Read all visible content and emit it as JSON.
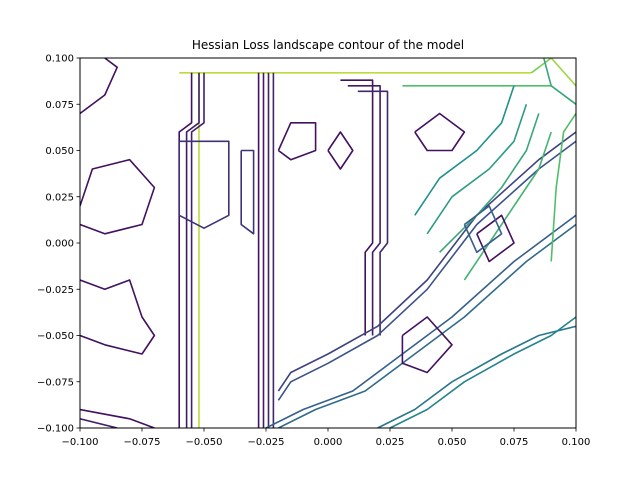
{
  "chart_data": {
    "type": "contour",
    "title": "Hessian Loss landscape contour of the model",
    "xlabel": "",
    "ylabel": "",
    "xlim": [
      -0.1,
      0.1
    ],
    "ylim": [
      -0.1,
      0.1
    ],
    "x_ticks": [
      -0.1,
      -0.075,
      -0.05,
      -0.025,
      0.0,
      0.025,
      0.05,
      0.075,
      0.1
    ],
    "x_tick_labels": [
      "−0.100",
      "−0.075",
      "−0.050",
      "−0.025",
      "0.000",
      "0.025",
      "0.050",
      "0.075",
      "0.100"
    ],
    "y_ticks": [
      -0.1,
      -0.075,
      -0.05,
      -0.025,
      0.0,
      0.025,
      0.05,
      0.075,
      0.1
    ],
    "y_tick_labels": [
      "−0.100",
      "−0.075",
      "−0.050",
      "−0.025",
      "0.000",
      "0.025",
      "0.050",
      "0.075",
      "0.100"
    ],
    "grid": false,
    "colormap": "viridis",
    "colors": {
      "low": "#440154",
      "mid_low": "#3b528b",
      "mid": "#21918c",
      "mid_high": "#5ec962",
      "high": "#fde725"
    },
    "paths": [
      {
        "level": 0.9,
        "points": [
          [
            -0.06,
            0.092
          ],
          [
            0.082,
            0.092
          ]
        ]
      },
      {
        "level": 0.9,
        "points": [
          [
            -0.052,
            0.092
          ],
          [
            -0.052,
            -0.1
          ]
        ]
      },
      {
        "level": 0.8,
        "points": [
          [
            0.082,
            0.092
          ],
          [
            0.09,
            0.1
          ]
        ]
      },
      {
        "level": 0.7,
        "points": [
          [
            0.03,
            0.085
          ],
          [
            0.09,
            0.085
          ]
        ]
      },
      {
        "level": 0.6,
        "points": [
          [
            0.087,
            0.1
          ],
          [
            0.09,
            0.085
          ],
          [
            0.1,
            0.075
          ]
        ]
      },
      {
        "level": 0.85,
        "points": [
          [
            0.09,
            0.1
          ],
          [
            0.1,
            0.085
          ]
        ]
      },
      {
        "level": 0.05,
        "points": [
          [
            -0.055,
            0.092
          ],
          [
            -0.055,
            0.065
          ],
          [
            -0.06,
            0.06
          ],
          [
            -0.06,
            -0.1
          ]
        ]
      },
      {
        "level": 0.08,
        "points": [
          [
            -0.052,
            0.092
          ],
          [
            -0.052,
            0.065
          ],
          [
            -0.057,
            0.06
          ],
          [
            -0.057,
            -0.1
          ]
        ]
      },
      {
        "level": 0.1,
        "points": [
          [
            -0.05,
            0.092
          ],
          [
            -0.05,
            0.065
          ],
          [
            -0.055,
            0.06
          ],
          [
            -0.055,
            -0.1
          ]
        ]
      },
      {
        "level": 0.05,
        "points": [
          [
            -0.028,
            0.092
          ],
          [
            -0.028,
            -0.1
          ]
        ]
      },
      {
        "level": 0.08,
        "points": [
          [
            -0.026,
            0.092
          ],
          [
            -0.026,
            -0.1
          ]
        ]
      },
      {
        "level": 0.1,
        "points": [
          [
            -0.024,
            0.092
          ],
          [
            -0.024,
            -0.1
          ]
        ]
      },
      {
        "level": 0.12,
        "points": [
          [
            -0.022,
            0.092
          ],
          [
            -0.022,
            -0.1
          ]
        ]
      },
      {
        "level": 0.05,
        "points": [
          [
            0.005,
            0.088
          ],
          [
            0.018,
            0.088
          ],
          [
            0.018,
            0.0
          ],
          [
            0.015,
            -0.005
          ],
          [
            0.015,
            -0.05
          ]
        ]
      },
      {
        "level": 0.08,
        "points": [
          [
            0.008,
            0.085
          ],
          [
            0.021,
            0.085
          ],
          [
            0.021,
            0.0
          ],
          [
            0.018,
            -0.005
          ],
          [
            0.018,
            -0.05
          ]
        ]
      },
      {
        "level": 0.12,
        "points": [
          [
            0.012,
            0.082
          ],
          [
            0.024,
            0.082
          ],
          [
            0.024,
            0.0
          ],
          [
            0.021,
            -0.005
          ],
          [
            0.021,
            -0.05
          ]
        ]
      },
      {
        "level": 0.15,
        "points": [
          [
            -0.06,
            0.055
          ],
          [
            -0.06,
            0.015
          ],
          [
            -0.05,
            0.008
          ],
          [
            -0.04,
            0.015
          ],
          [
            -0.04,
            0.055
          ],
          [
            -0.06,
            0.055
          ]
        ]
      },
      {
        "level": 0.15,
        "points": [
          [
            -0.035,
            0.05
          ],
          [
            -0.035,
            0.01
          ],
          [
            -0.03,
            0.005
          ],
          [
            -0.03,
            0.05
          ],
          [
            -0.035,
            0.05
          ]
        ]
      },
      {
        "level": 0.2,
        "points": [
          [
            -0.02,
            -0.08
          ],
          [
            -0.015,
            -0.07
          ],
          [
            0.0,
            -0.06
          ],
          [
            0.02,
            -0.045
          ],
          [
            0.04,
            -0.02
          ],
          [
            0.06,
            0.015
          ],
          [
            0.085,
            0.045
          ],
          [
            0.1,
            0.06
          ]
        ]
      },
      {
        "level": 0.25,
        "points": [
          [
            -0.02,
            -0.085
          ],
          [
            -0.015,
            -0.075
          ],
          [
            0.0,
            -0.065
          ],
          [
            0.02,
            -0.05
          ],
          [
            0.04,
            -0.025
          ],
          [
            0.06,
            0.01
          ],
          [
            0.085,
            0.04
          ],
          [
            0.1,
            0.055
          ]
        ]
      },
      {
        "level": 0.3,
        "points": [
          [
            -0.025,
            -0.1
          ],
          [
            -0.01,
            -0.09
          ],
          [
            0.01,
            -0.08
          ],
          [
            0.03,
            -0.06
          ],
          [
            0.05,
            -0.04
          ],
          [
            0.075,
            -0.01
          ],
          [
            0.1,
            0.015
          ]
        ]
      },
      {
        "level": 0.35,
        "points": [
          [
            -0.02,
            -0.1
          ],
          [
            -0.005,
            -0.09
          ],
          [
            0.015,
            -0.08
          ],
          [
            0.035,
            -0.06
          ],
          [
            0.055,
            -0.04
          ],
          [
            0.08,
            -0.01
          ],
          [
            0.1,
            0.01
          ]
        ]
      },
      {
        "level": 0.4,
        "points": [
          [
            0.02,
            -0.1
          ],
          [
            0.035,
            -0.09
          ],
          [
            0.05,
            -0.075
          ],
          [
            0.07,
            -0.06
          ],
          [
            0.085,
            -0.05
          ],
          [
            0.1,
            -0.045
          ]
        ]
      },
      {
        "level": 0.45,
        "points": [
          [
            0.025,
            -0.1
          ],
          [
            0.04,
            -0.09
          ],
          [
            0.055,
            -0.075
          ],
          [
            0.075,
            -0.06
          ],
          [
            0.09,
            -0.05
          ],
          [
            0.1,
            -0.04
          ]
        ]
      },
      {
        "level": 0.5,
        "points": [
          [
            0.035,
            0.015
          ],
          [
            0.045,
            0.035
          ],
          [
            0.06,
            0.05
          ],
          [
            0.07,
            0.065
          ],
          [
            0.075,
            0.085
          ]
        ]
      },
      {
        "level": 0.55,
        "points": [
          [
            0.04,
            0.005
          ],
          [
            0.05,
            0.025
          ],
          [
            0.065,
            0.04
          ],
          [
            0.075,
            0.055
          ],
          [
            0.08,
            0.075
          ]
        ]
      },
      {
        "level": 0.6,
        "points": [
          [
            0.045,
            -0.005
          ],
          [
            0.06,
            0.015
          ],
          [
            0.07,
            0.03
          ],
          [
            0.08,
            0.05
          ],
          [
            0.085,
            0.07
          ]
        ]
      },
      {
        "level": 0.65,
        "points": [
          [
            0.055,
            -0.02
          ],
          [
            0.065,
            0.0
          ],
          [
            0.075,
            0.02
          ],
          [
            0.085,
            0.04
          ],
          [
            0.09,
            0.06
          ]
        ]
      },
      {
        "level": 0.7,
        "points": [
          [
            0.09,
            -0.01
          ],
          [
            0.092,
            0.03
          ],
          [
            0.095,
            0.06
          ],
          [
            0.1,
            0.07
          ]
        ]
      },
      {
        "level": 0.05,
        "points": [
          [
            -0.1,
            -0.09
          ],
          [
            -0.08,
            -0.095
          ],
          [
            -0.07,
            -0.1
          ]
        ]
      },
      {
        "level": 0.1,
        "points": [
          [
            -0.1,
            -0.095
          ],
          [
            -0.085,
            -0.1
          ]
        ]
      },
      {
        "level": 0.05,
        "points": [
          [
            -0.1,
            0.02
          ],
          [
            -0.095,
            0.04
          ],
          [
            -0.08,
            0.045
          ],
          [
            -0.07,
            0.03
          ],
          [
            -0.075,
            0.01
          ],
          [
            -0.09,
            0.005
          ],
          [
            -0.1,
            0.01
          ]
        ]
      },
      {
        "level": 0.05,
        "points": [
          [
            -0.1,
            -0.02
          ],
          [
            -0.09,
            -0.025
          ],
          [
            -0.08,
            -0.02
          ],
          [
            -0.075,
            -0.04
          ],
          [
            -0.07,
            -0.05
          ],
          [
            -0.075,
            -0.06
          ],
          [
            -0.09,
            -0.055
          ],
          [
            -0.1,
            -0.05
          ]
        ]
      },
      {
        "level": 0.05,
        "points": [
          [
            -0.1,
            0.07
          ],
          [
            -0.09,
            0.08
          ],
          [
            -0.085,
            0.095
          ],
          [
            -0.09,
            0.1
          ]
        ]
      },
      {
        "level": 0.05,
        "points": [
          [
            0.035,
            0.06
          ],
          [
            0.045,
            0.07
          ],
          [
            0.055,
            0.06
          ],
          [
            0.05,
            0.05
          ],
          [
            0.04,
            0.05
          ],
          [
            0.035,
            0.06
          ]
        ]
      },
      {
        "level": 0.05,
        "points": [
          [
            0.0,
            0.05
          ],
          [
            0.005,
            0.06
          ],
          [
            0.01,
            0.05
          ],
          [
            0.005,
            0.04
          ],
          [
            0.0,
            0.05
          ]
        ]
      },
      {
        "level": 0.05,
        "points": [
          [
            -0.02,
            0.05
          ],
          [
            -0.015,
            0.065
          ],
          [
            -0.005,
            0.065
          ],
          [
            -0.005,
            0.05
          ],
          [
            -0.015,
            0.045
          ],
          [
            -0.02,
            0.05
          ]
        ]
      },
      {
        "level": 0.05,
        "points": [
          [
            0.03,
            -0.05
          ],
          [
            0.04,
            -0.04
          ],
          [
            0.05,
            -0.055
          ],
          [
            0.04,
            -0.07
          ],
          [
            0.03,
            -0.065
          ],
          [
            0.03,
            -0.05
          ]
        ]
      },
      {
        "level": 0.05,
        "points": [
          [
            0.06,
            0.005
          ],
          [
            0.07,
            0.015
          ],
          [
            0.075,
            0.0
          ],
          [
            0.065,
            -0.01
          ],
          [
            0.06,
            0.005
          ]
        ]
      },
      {
        "level": 0.3,
        "points": [
          [
            0.055,
            0.01
          ],
          [
            0.065,
            0.02
          ],
          [
            0.07,
            0.005
          ],
          [
            0.06,
            -0.005
          ],
          [
            0.055,
            0.01
          ]
        ]
      }
    ]
  }
}
